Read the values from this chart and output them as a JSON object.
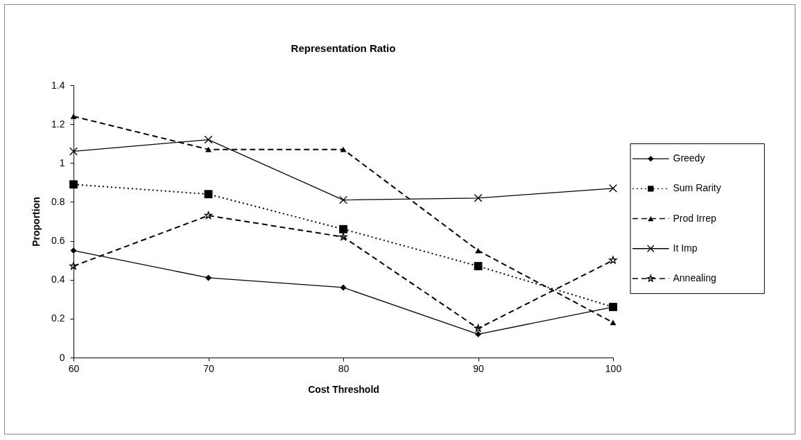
{
  "chart_data": {
    "type": "line",
    "title": "Representation Ratio",
    "xlabel": "Cost Threshold",
    "ylabel": "Proportion",
    "x": [
      60,
      70,
      80,
      90,
      100
    ],
    "series": [
      {
        "name": "Greedy",
        "color": "#000000",
        "marker": "diamond",
        "line_style": "solid",
        "values": [
          0.55,
          0.41,
          0.36,
          0.12,
          0.26
        ]
      },
      {
        "name": "Sum Rarity",
        "color": "#000000",
        "marker": "square",
        "line_style": "dotted",
        "values": [
          0.89,
          0.84,
          0.66,
          0.47,
          0.26
        ]
      },
      {
        "name": "Prod Irrep",
        "color": "#000000",
        "marker": "triangle",
        "line_style": "dashed",
        "values": [
          1.24,
          1.07,
          1.07,
          0.55,
          0.18
        ]
      },
      {
        "name": "It Imp",
        "color": "#000000",
        "marker": "cross",
        "line_style": "solid",
        "values": [
          1.06,
          1.12,
          0.81,
          0.82,
          0.87
        ]
      },
      {
        "name": "Annealing",
        "color": "#000000",
        "marker": "star",
        "line_style": "dashed",
        "values": [
          0.47,
          0.73,
          0.62,
          0.15,
          0.5
        ]
      }
    ],
    "xlim": [
      60,
      100
    ],
    "xticks": [
      60,
      70,
      80,
      90,
      100
    ],
    "ylim": [
      0,
      1.4
    ],
    "yticks": [
      0,
      0.2,
      0.4,
      0.6,
      0.8,
      1,
      1.2,
      1.4
    ],
    "grid": false,
    "legend": "right"
  }
}
